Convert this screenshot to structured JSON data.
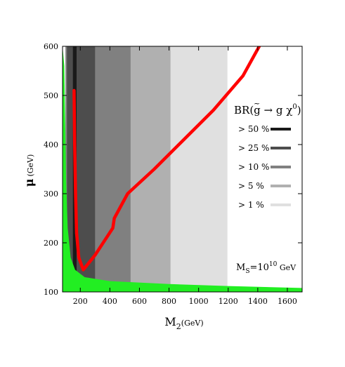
{
  "chart_data": {
    "type": "area",
    "x_axis": {
      "label_main": "M",
      "label_sub": "2",
      "label_unit": "(GeV)",
      "range": [
        80,
        1700
      ],
      "ticks": [
        200,
        400,
        600,
        800,
        1000,
        1200,
        1400,
        1600
      ],
      "tick_labels": [
        "200",
        "400",
        "600",
        "800",
        "1000",
        "1200",
        "1400",
        "1600"
      ]
    },
    "y_axis": {
      "label_main": "μ",
      "label_unit": "(GeV)",
      "range": [
        100,
        600
      ],
      "ticks": [
        100,
        200,
        300,
        400,
        500,
        600
      ],
      "tick_labels": [
        "100",
        "200",
        "300",
        "400",
        "500",
        "600"
      ]
    },
    "legend": {
      "placement": "right",
      "title_prefix": "BR(",
      "title_gluino": "g",
      "title_arrow": " → g χ",
      "title_sup": "0",
      "title_suffix": ")",
      "entries": [
        {
          "label": "> 50 %",
          "color": "#1a1a1a"
        },
        {
          "label": "> 25 %",
          "color": "#4d4d4d"
        },
        {
          "label": "> 10 %",
          "color": "#808080"
        },
        {
          "label": ">  5 %",
          "color": "#b0b0b0"
        },
        {
          "label": ">  1 %",
          "color": "#e0e0e0"
        }
      ]
    },
    "annotation": {
      "prefix": "M",
      "sub": "S",
      "eq": "=10",
      "sup": "10",
      "unit": " GeV"
    },
    "regions": [
      {
        "level": "> 1 %",
        "color": "#e0e0e0",
        "x_left": 100,
        "x_right": 1195
      },
      {
        "level": "> 5 %",
        "color": "#b0b0b0",
        "x_left": 100,
        "x_right": 810
      },
      {
        "level": "> 10 %",
        "color": "#808080",
        "x_left": 100,
        "x_right": 540
      },
      {
        "level": "> 25 %",
        "color": "#4d4d4d",
        "x_left": 110,
        "x_right": 300
      },
      {
        "level": "> 50 %",
        "color": "#1a1a1a",
        "x_left": 150,
        "x_right": 175
      }
    ],
    "green_region": {
      "color": "#22ee22",
      "curve": [
        [
          80,
          600
        ],
        [
          92,
          560
        ],
        [
          98,
          450
        ],
        [
          104,
          330
        ],
        [
          115,
          230
        ],
        [
          135,
          170
        ],
        [
          165,
          145
        ],
        [
          230,
          130
        ],
        [
          400,
          122
        ],
        [
          800,
          116
        ],
        [
          1200,
          112
        ],
        [
          1700,
          108
        ]
      ]
    },
    "red_curve": {
      "color": "#ff0000",
      "points": [
        [
          158,
          510
        ],
        [
          162,
          400
        ],
        [
          168,
          300
        ],
        [
          175,
          220
        ],
        [
          190,
          170
        ],
        [
          220,
          145
        ],
        [
          300,
          175
        ],
        [
          420,
          230
        ],
        [
          430,
          250
        ],
        [
          520,
          300
        ],
        [
          700,
          350
        ],
        [
          900,
          410
        ],
        [
          1100,
          470
        ],
        [
          1300,
          540
        ],
        [
          1410,
          600
        ]
      ]
    }
  }
}
